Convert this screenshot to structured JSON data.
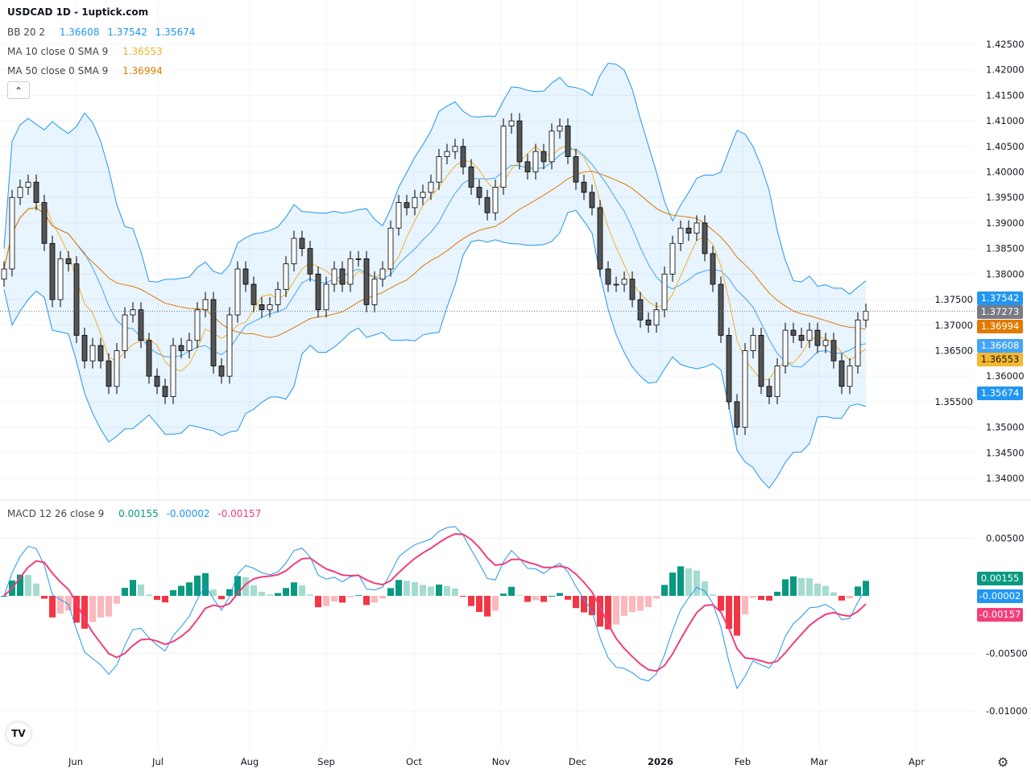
{
  "header": {
    "title": "USDCAD 1D - 1uptick.com"
  },
  "legend": {
    "bb": {
      "label": "BB 20 2",
      "basis": "1.36608",
      "upper": "1.37542",
      "lower": "1.35674",
      "color": "#2196f3"
    },
    "ma10": {
      "label": "MA 10 close 0 SMA 9",
      "value": "1.36553",
      "color": "#f5b02e"
    },
    "ma50": {
      "label": "MA 50 close 0 SMA 9",
      "value": "1.36994",
      "color": "#e07b00"
    },
    "macd": {
      "label": "MACD 12 26 close 9",
      "hist": "0.00155",
      "macd": "-0.00002",
      "signal": "-0.00157",
      "hist_color": "#089981",
      "macd_color": "#2196f3",
      "signal_color": "#f23e7a"
    }
  },
  "price_labels": {
    "bb_upper": "1.37542",
    "last": "1.37273",
    "ma50": "1.36994",
    "bb_basis": "1.36608",
    "ma10": "1.36553",
    "bb_lower": "1.35674"
  },
  "macd_labels": {
    "hist": "0.00155",
    "macd": "-0.00002",
    "signal": "-0.00157"
  },
  "chart_data": {
    "type": "candlestick",
    "symbol": "USDCAD",
    "interval": "1D",
    "y_ticks": [
      "1.42500",
      "1.42000",
      "1.41500",
      "1.41000",
      "1.40500",
      "1.40000",
      "1.39500",
      "1.39000",
      "1.38500",
      "1.38000",
      "1.37500",
      "1.37000",
      "1.36500",
      "1.36000",
      "1.35500",
      "1.35000",
      "1.34500",
      "1.34000"
    ],
    "ylim": [
      1.34,
      1.425
    ],
    "x_ticks": [
      "Jun",
      "Jul",
      "Aug",
      "Sep",
      "Oct",
      "Nov",
      "Dec",
      "2026",
      "Feb",
      "Mar",
      "Apr"
    ],
    "closes": [
      1.381,
      1.395,
      1.397,
      1.398,
      1.394,
      1.386,
      1.375,
      1.383,
      1.382,
      1.368,
      1.363,
      1.366,
      1.363,
      1.358,
      1.365,
      1.372,
      1.373,
      1.367,
      1.36,
      1.358,
      1.356,
      1.366,
      1.365,
      1.367,
      1.373,
      1.375,
      1.362,
      1.36,
      1.372,
      1.381,
      1.378,
      1.374,
      1.373,
      1.374,
      1.377,
      1.382,
      1.387,
      1.385,
      1.38,
      1.373,
      1.378,
      1.381,
      1.378,
      1.383,
      1.383,
      1.374,
      1.379,
      1.381,
      1.389,
      1.394,
      1.393,
      1.395,
      1.396,
      1.398,
      1.403,
      1.404,
      1.405,
      1.401,
      1.397,
      1.395,
      1.392,
      1.397,
      1.409,
      1.41,
      1.402,
      1.4,
      1.404,
      1.402,
      1.408,
      1.409,
      1.403,
      1.398,
      1.396,
      1.393,
      1.381,
      1.378,
      1.378,
      1.379,
      1.375,
      1.371,
      1.37,
      1.373,
      1.38,
      1.386,
      1.389,
      1.388,
      1.39,
      1.384,
      1.378,
      1.368,
      1.355,
      1.35,
      1.365,
      1.368,
      1.358,
      1.356,
      1.362,
      1.369,
      1.368,
      1.367,
      1.369,
      1.366,
      1.367,
      1.363,
      1.358,
      1.362,
      1.371,
      1.37273
    ],
    "macd_y_ticks": [
      "0.00500",
      "-0.00500",
      "-0.01000"
    ],
    "macd_ylim": [
      -0.0115,
      0.0065
    ],
    "last_price": 1.37273
  }
}
